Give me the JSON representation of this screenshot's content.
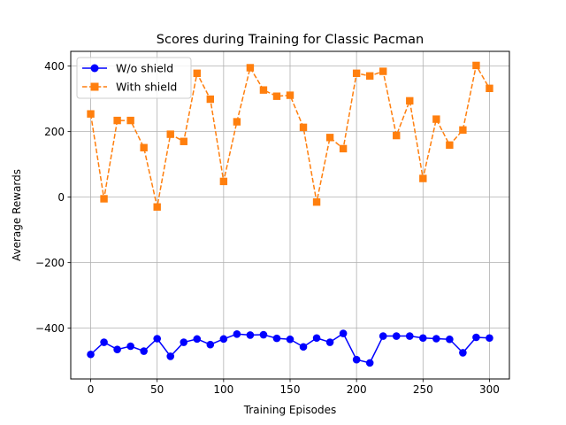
{
  "chart_data": {
    "type": "line",
    "title": "Scores during Training for Classic Pacman",
    "xlabel": "Training Episodes",
    "ylabel": "Average Rewards",
    "xlim": [
      -15,
      315
    ],
    "ylim": [
      -555,
      445
    ],
    "xticks": [
      0,
      50,
      100,
      150,
      200,
      250,
      300
    ],
    "yticks": [
      -400,
      -200,
      0,
      200,
      400
    ],
    "grid": true,
    "legend_position": "top-left",
    "x": [
      0,
      10,
      20,
      30,
      40,
      50,
      60,
      70,
      80,
      90,
      100,
      110,
      120,
      130,
      140,
      150,
      160,
      170,
      180,
      190,
      200,
      210,
      220,
      230,
      240,
      250,
      260,
      270,
      280,
      290,
      300
    ],
    "series": [
      {
        "name": "W/o shield",
        "color": "#0000ff",
        "linestyle": "solid",
        "marker": "circle",
        "values": [
          -480,
          -443,
          -465,
          -455,
          -470,
          -432,
          -486,
          -443,
          -433,
          -450,
          -433,
          -418,
          -421,
          -420,
          -431,
          -434,
          -457,
          -430,
          -443,
          -416,
          -496,
          -506,
          -424,
          -424,
          -424,
          -430,
          -432,
          -434,
          -475,
          -428,
          -430
        ]
      },
      {
        "name": "With shield",
        "color": "#ff7f0e",
        "linestyle": "dashed",
        "marker": "square",
        "values": [
          254,
          -5,
          234,
          234,
          151,
          -30,
          192,
          170,
          378,
          299,
          48,
          230,
          395,
          327,
          308,
          311,
          213,
          -15,
          182,
          148,
          378,
          370,
          384,
          188,
          294,
          57,
          238,
          159,
          205,
          402,
          332
        ]
      }
    ]
  }
}
